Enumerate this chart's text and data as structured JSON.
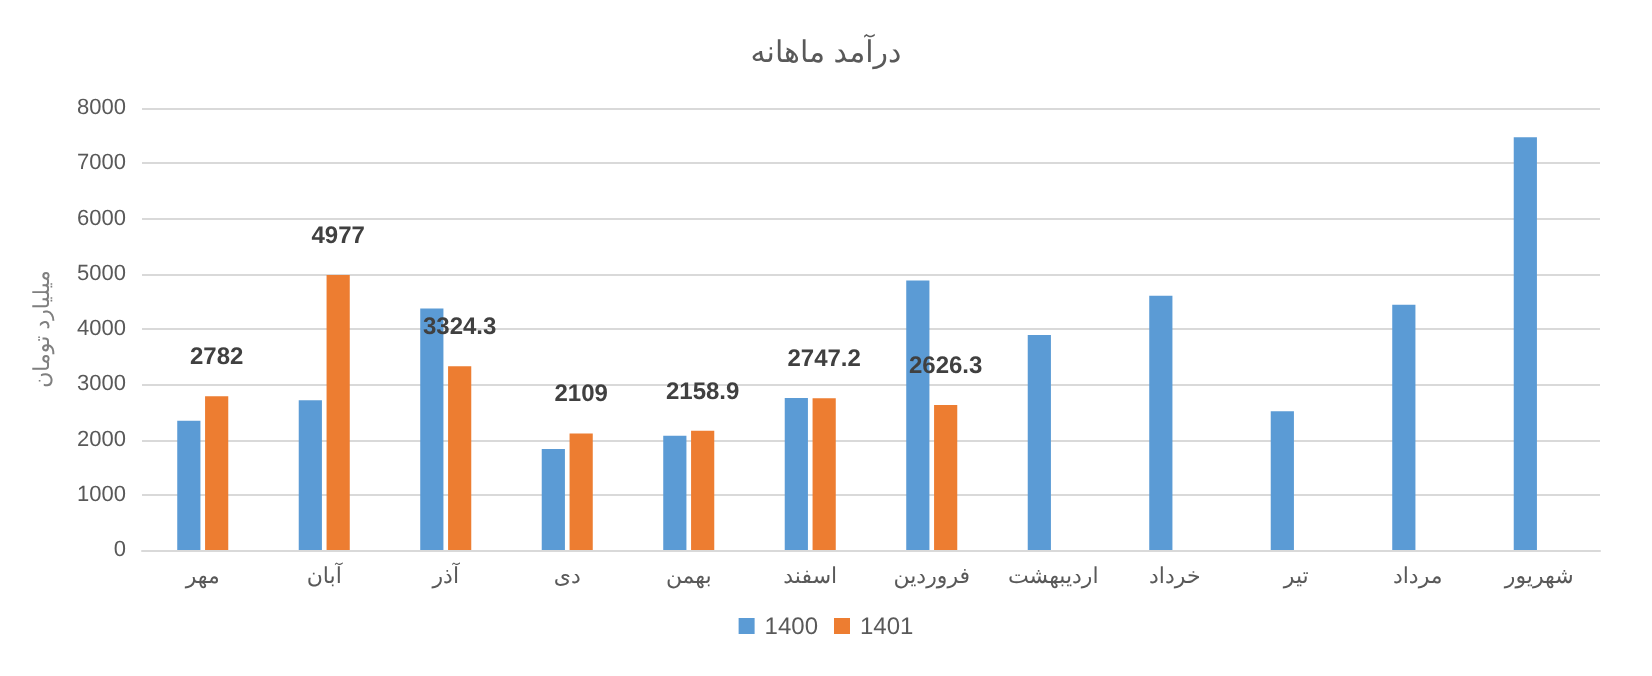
{
  "chart_data": {
    "type": "bar",
    "title": "درآمد ماهانه",
    "ylabel": "میلیارد تومان",
    "categories": [
      "مهر",
      "آبان",
      "آذر",
      "دی",
      "بهمن",
      "اسفند",
      "فروردین",
      "اردیبهشت",
      "خرداد",
      "تیر",
      "مرداد",
      "شهریور"
    ],
    "series": [
      {
        "name": "1400",
        "color": "#5b9bd5",
        "values": [
          2340,
          2710,
          4370,
          1830,
          2070,
          2750,
          4880,
          3890,
          4600,
          2510,
          4440,
          7470
        ]
      },
      {
        "name": "1401",
        "color": "#ed7d31",
        "values": [
          2782,
          4977,
          3324.3,
          2109,
          2158.9,
          2747.2,
          2626.3,
          null,
          null,
          null,
          null,
          null
        ],
        "value_labels": [
          "2782",
          "4977",
          "3324.3",
          "2109",
          "2158.9",
          "2747.2",
          "2626.3",
          null,
          null,
          null,
          null,
          null
        ]
      }
    ],
    "ylim": [
      0,
      8000
    ],
    "yticks": [
      0,
      1000,
      2000,
      3000,
      4000,
      5000,
      6000,
      7000,
      8000
    ],
    "grid": "y",
    "legend": "bottom"
  }
}
